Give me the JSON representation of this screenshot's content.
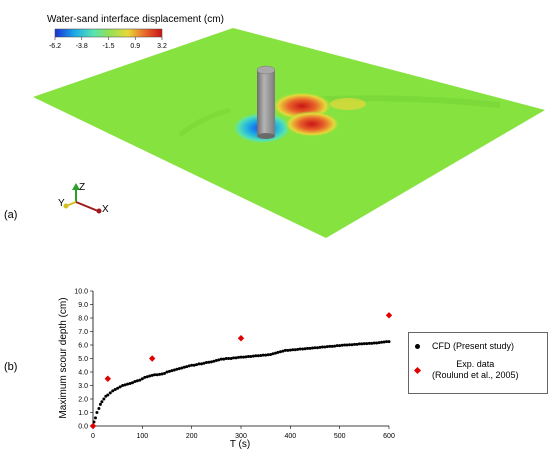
{
  "panel_a": {
    "label": "(a)",
    "colorbar_title": "Water-sand interface displacement (cm)",
    "colorbar_ticks": [
      "-6.2",
      "-3.8",
      "-1.5",
      "0.9",
      "3.2"
    ],
    "colorbar_colors": [
      "#1c2fd6",
      "#1aa8e8",
      "#58e4b0",
      "#8fe05a",
      "#e8d83a",
      "#e8622a",
      "#c81414"
    ],
    "axis_labels": {
      "z": "Z",
      "y": "Y",
      "x": "X"
    },
    "colors": {
      "bed": "#86e23f",
      "pile": "#9a9a9a",
      "scour": "#1e6ee6",
      "deposit": "#d8321e"
    }
  },
  "panel_b": {
    "label": "(b)",
    "legend": {
      "cfd": "CFD (Present study)",
      "exp_line1": "Exp. data",
      "exp_line2": "(Roulund et al., 2005)"
    }
  },
  "chart_data": {
    "type": "scatter",
    "xlabel": "T (s)",
    "ylabel": "Maximum scour depth (cm)",
    "xlim": [
      0,
      600
    ],
    "ylim": [
      0,
      10
    ],
    "x_ticks": [
      "0",
      "100",
      "200",
      "300",
      "400",
      "500",
      "600"
    ],
    "y_ticks": [
      "0.0",
      "1.0",
      "2.0",
      "3.0",
      "4.0",
      "5.0",
      "6.0",
      "7.0",
      "8.0",
      "9.0",
      "10.0"
    ],
    "grid": false,
    "legend_position": "right",
    "series": [
      {
        "name": "CFD (Present study)",
        "marker": "circle",
        "color": "#000000",
        "points": [
          [
            2,
            0.3
          ],
          [
            5,
            0.6
          ],
          [
            8,
            1.0
          ],
          [
            12,
            1.3
          ],
          [
            15,
            1.6
          ],
          [
            18,
            1.8
          ],
          [
            22,
            2.0
          ],
          [
            26,
            2.2
          ],
          [
            30,
            2.3
          ],
          [
            35,
            2.45
          ],
          [
            40,
            2.6
          ],
          [
            45,
            2.7
          ],
          [
            50,
            2.8
          ],
          [
            55,
            2.9
          ],
          [
            60,
            3.0
          ],
          [
            65,
            3.05
          ],
          [
            70,
            3.1
          ],
          [
            75,
            3.15
          ],
          [
            80,
            3.2
          ],
          [
            85,
            3.3
          ],
          [
            90,
            3.35
          ],
          [
            95,
            3.4
          ],
          [
            100,
            3.5
          ],
          [
            105,
            3.6
          ],
          [
            110,
            3.65
          ],
          [
            115,
            3.7
          ],
          [
            120,
            3.75
          ],
          [
            125,
            3.8
          ],
          [
            130,
            3.8
          ],
          [
            135,
            3.82
          ],
          [
            140,
            3.85
          ],
          [
            145,
            3.9
          ],
          [
            150,
            4.0
          ],
          [
            155,
            4.05
          ],
          [
            160,
            4.1
          ],
          [
            165,
            4.15
          ],
          [
            170,
            4.2
          ],
          [
            175,
            4.25
          ],
          [
            180,
            4.3
          ],
          [
            185,
            4.35
          ],
          [
            190,
            4.4
          ],
          [
            195,
            4.45
          ],
          [
            200,
            4.5
          ],
          [
            205,
            4.5
          ],
          [
            210,
            4.55
          ],
          [
            215,
            4.6
          ],
          [
            220,
            4.6
          ],
          [
            225,
            4.65
          ],
          [
            230,
            4.7
          ],
          [
            235,
            4.72
          ],
          [
            240,
            4.75
          ],
          [
            245,
            4.8
          ],
          [
            250,
            4.85
          ],
          [
            255,
            4.9
          ],
          [
            260,
            4.95
          ],
          [
            265,
            4.95
          ],
          [
            270,
            5.0
          ],
          [
            275,
            5.0
          ],
          [
            280,
            5.0
          ],
          [
            285,
            5.05
          ],
          [
            290,
            5.05
          ],
          [
            295,
            5.08
          ],
          [
            300,
            5.1
          ],
          [
            305,
            5.1
          ],
          [
            310,
            5.12
          ],
          [
            315,
            5.15
          ],
          [
            320,
            5.15
          ],
          [
            325,
            5.18
          ],
          [
            330,
            5.2
          ],
          [
            335,
            5.2
          ],
          [
            340,
            5.22
          ],
          [
            345,
            5.25
          ],
          [
            350,
            5.25
          ],
          [
            355,
            5.28
          ],
          [
            360,
            5.3
          ],
          [
            365,
            5.35
          ],
          [
            370,
            5.4
          ],
          [
            375,
            5.45
          ],
          [
            380,
            5.5
          ],
          [
            385,
            5.55
          ],
          [
            390,
            5.6
          ],
          [
            395,
            5.6
          ],
          [
            400,
            5.62
          ],
          [
            405,
            5.65
          ],
          [
            410,
            5.65
          ],
          [
            415,
            5.68
          ],
          [
            420,
            5.7
          ],
          [
            425,
            5.7
          ],
          [
            430,
            5.72
          ],
          [
            435,
            5.75
          ],
          [
            440,
            5.75
          ],
          [
            445,
            5.78
          ],
          [
            450,
            5.8
          ],
          [
            455,
            5.8
          ],
          [
            460,
            5.82
          ],
          [
            465,
            5.85
          ],
          [
            470,
            5.85
          ],
          [
            475,
            5.88
          ],
          [
            480,
            5.9
          ],
          [
            485,
            5.9
          ],
          [
            490,
            5.92
          ],
          [
            495,
            5.95
          ],
          [
            500,
            5.95
          ],
          [
            505,
            5.98
          ],
          [
            510,
            6.0
          ],
          [
            515,
            6.0
          ],
          [
            520,
            6.02
          ],
          [
            525,
            6.02
          ],
          [
            530,
            6.05
          ],
          [
            535,
            6.05
          ],
          [
            540,
            6.08
          ],
          [
            545,
            6.08
          ],
          [
            550,
            6.1
          ],
          [
            555,
            6.1
          ],
          [
            560,
            6.12
          ],
          [
            565,
            6.12
          ],
          [
            570,
            6.15
          ],
          [
            575,
            6.15
          ],
          [
            580,
            6.18
          ],
          [
            585,
            6.2
          ],
          [
            590,
            6.22
          ],
          [
            595,
            6.25
          ],
          [
            600,
            6.25
          ]
        ]
      },
      {
        "name": "Exp. data (Roulund et al., 2005)",
        "marker": "diamond",
        "color": "#e00000",
        "points": [
          [
            0,
            0.0
          ],
          [
            30,
            3.5
          ],
          [
            120,
            5.0
          ],
          [
            300,
            6.5
          ],
          [
            600,
            8.2
          ]
        ]
      }
    ]
  }
}
